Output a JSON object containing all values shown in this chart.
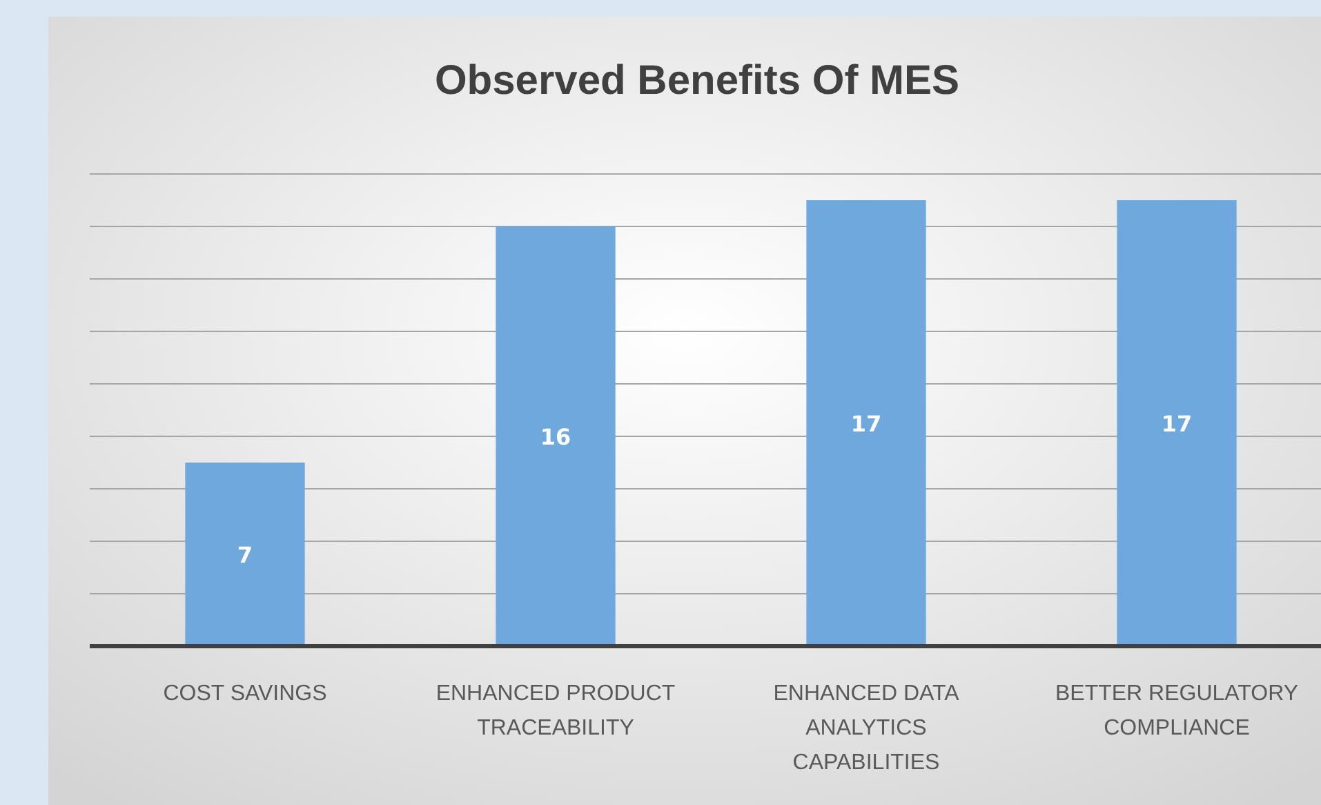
{
  "chart_data": {
    "type": "bar",
    "title": "Observed Benefits Of MES",
    "categories": [
      "COST SAVINGS",
      "ENHANCED PRODUCT TRACEABILITY",
      "ENHANCED DATA ANALYTICS CAPABILITIES",
      "BETTER REGULATORY COMPLIANCE"
    ],
    "values": [
      7,
      16,
      17,
      17
    ],
    "color": "#6fa8dc",
    "ylim": [
      0,
      18
    ],
    "yticks": [
      {
        "value": 0,
        "label": null
      },
      {
        "value": 2,
        "label": null
      },
      {
        "value": 4,
        "label": null
      },
      {
        "value": 6,
        "label": null
      },
      {
        "value": 8,
        "label": null
      },
      {
        "value": 10,
        "label": null
      },
      {
        "value": 12,
        "label": null
      },
      {
        "value": 14,
        "label": null
      },
      {
        "value": 16,
        "label": null
      },
      {
        "value": 18,
        "label": null
      }
    ],
    "grid": "y",
    "tick_labels": "x",
    "data_labels": true
  }
}
